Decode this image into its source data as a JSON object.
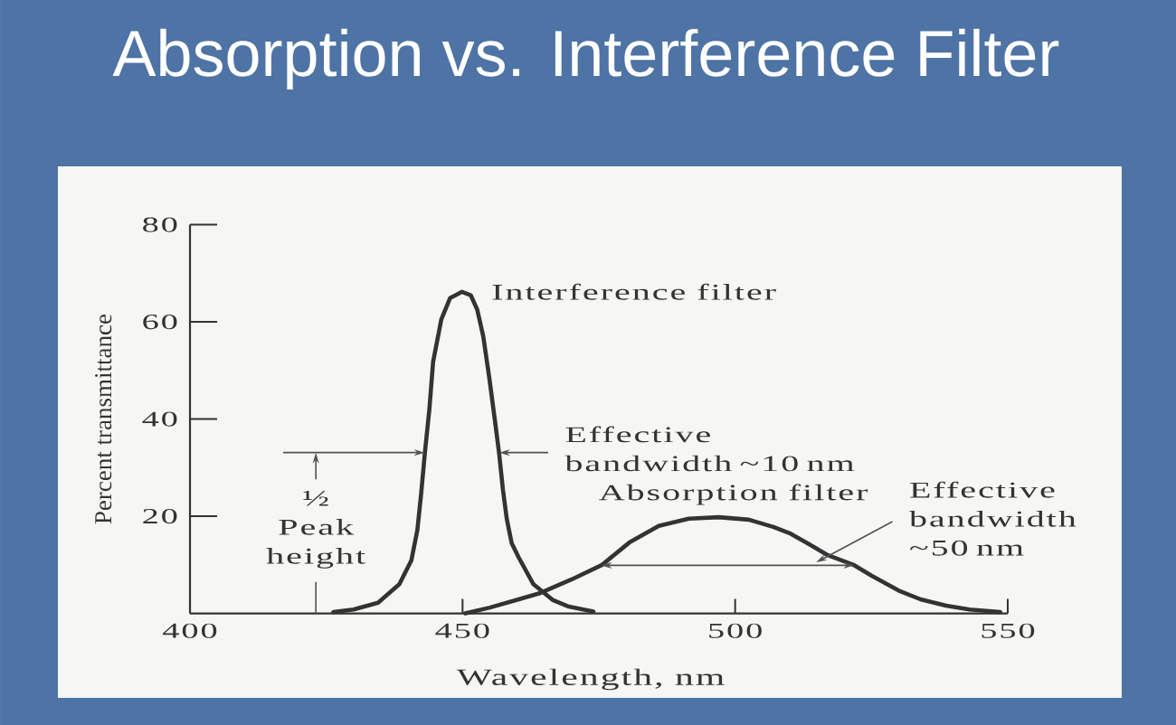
{
  "chart_data": {
    "type": "line",
    "title": "Absorption vs. Interference Filter",
    "xlabel": "Wavelength, nm",
    "ylabel": "Percent transmittance",
    "xlim": [
      400,
      550
    ],
    "ylim": [
      0,
      80
    ],
    "xticks": [
      400,
      450,
      500,
      550
    ],
    "yticks": [
      20,
      40,
      60,
      80
    ],
    "series": [
      {
        "name": "Interference filter",
        "color": "#333333",
        "x": [
          426.3,
          430,
          434.5,
          438.4,
          440.6,
          441.7,
          442.4,
          443.1,
          443.9,
          444.6,
          446.1,
          447.7,
          449.9,
          451.5,
          452.7,
          453.8,
          454.9,
          455.9,
          456.7,
          457.4,
          458.1,
          459,
          460.3,
          463,
          466.5,
          469.5,
          474
        ],
        "values": [
          0.3,
          0.8,
          2.2,
          6,
          10.9,
          17.1,
          24.6,
          33.2,
          41.9,
          51.8,
          60.5,
          64.9,
          66.2,
          65.5,
          62.5,
          57,
          48.5,
          40,
          33,
          25.5,
          19.5,
          14.5,
          11.5,
          6,
          2.8,
          1.4,
          0.4
        ]
      },
      {
        "name": "Absorption filter",
        "color": "#333333",
        "x": [
          450.5,
          455,
          460,
          464,
          470,
          475.6,
          480.6,
          486,
          491.5,
          497,
          502.5,
          507,
          510.2,
          513.5,
          516.8,
          521.7,
          525,
          530,
          534,
          538.7,
          543,
          548.6
        ],
        "values": [
          0,
          1.2,
          2.8,
          4.1,
          7,
          10,
          14.6,
          18,
          19.5,
          19.8,
          19.3,
          17.8,
          16.4,
          14.3,
          12.1,
          10,
          7.8,
          4.7,
          2.9,
          1.6,
          0.8,
          0.3
        ]
      }
    ],
    "annotations": [
      {
        "text": "Effective bandwidth ~10 nm",
        "x": 456.7,
        "y": 33.1
      },
      "½ Peak height",
      "Effective bandwidth ~50 nm"
    ]
  }
}
